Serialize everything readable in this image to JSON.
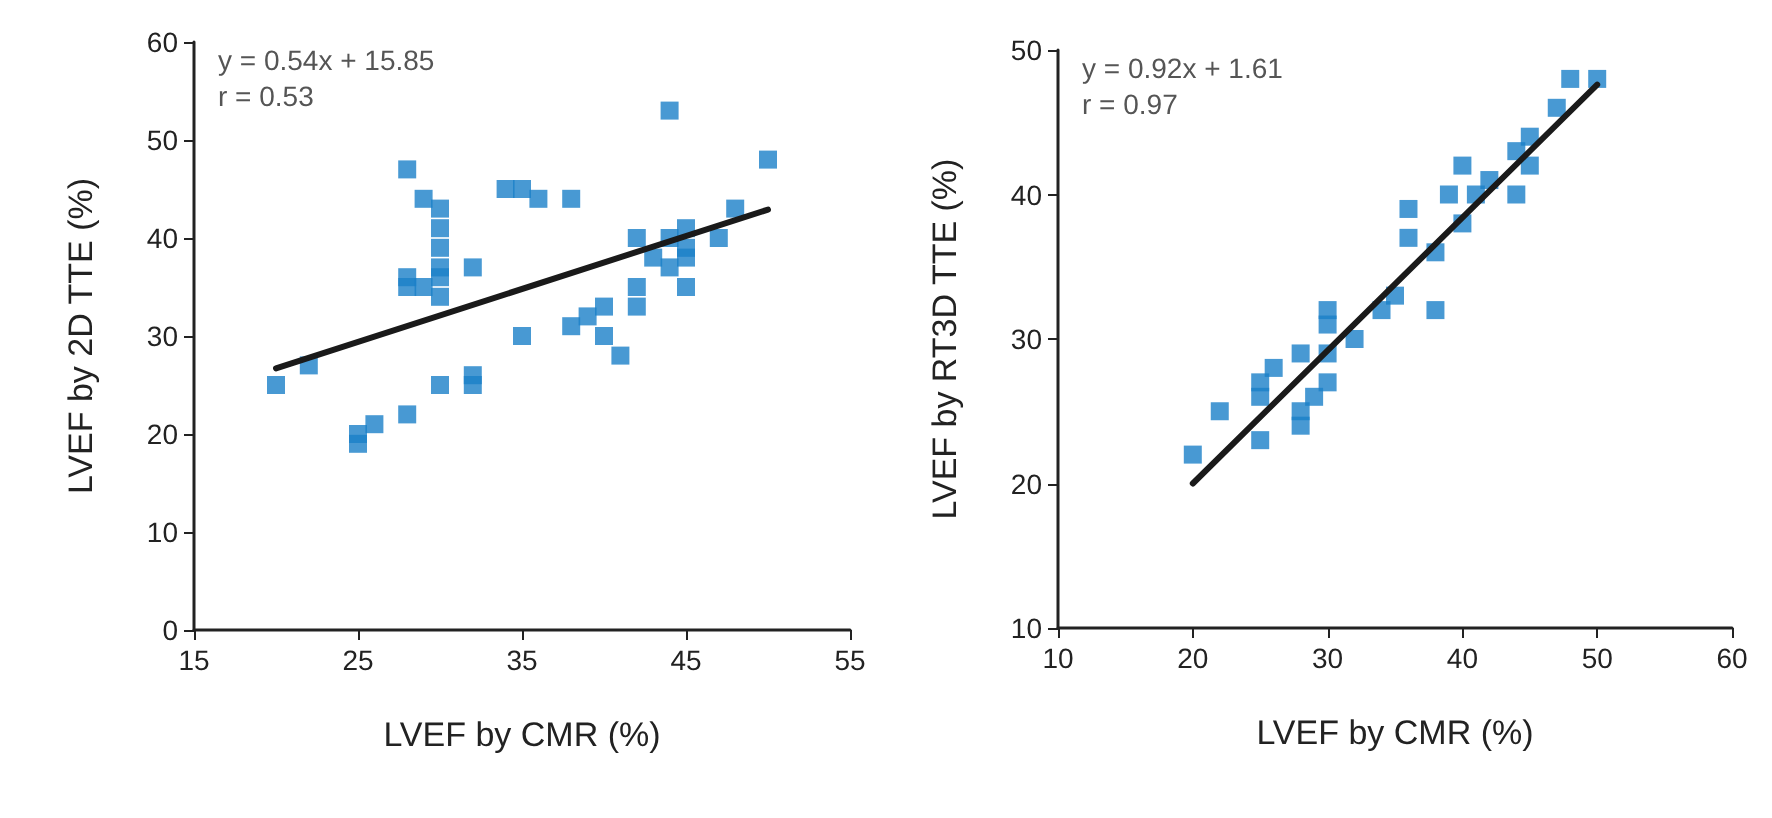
{
  "chart_data": [
    {
      "type": "scatter",
      "xlabel": "LVEF by CMR (%)",
      "ylabel": "LVEF by 2D TTE (%)",
      "annotations": [
        "y = 0.54x + 15.85",
        "r = 0.53"
      ],
      "xlim": [
        15,
        55
      ],
      "xticks": [
        15,
        25,
        35,
        45,
        55
      ],
      "ylim": [
        0,
        60
      ],
      "yticks": [
        0,
        10,
        20,
        30,
        40,
        50,
        60
      ],
      "marker": "square",
      "series": [
        {
          "color": "#1a7fc8",
          "x": [
            20,
            22,
            25,
            25,
            26,
            28,
            28,
            28,
            28,
            29,
            29,
            30,
            30,
            30,
            30,
            30,
            30,
            30,
            32,
            32,
            32,
            34,
            35,
            36,
            35,
            38,
            38,
            39,
            40,
            40,
            41,
            42,
            42,
            42,
            43,
            44,
            44,
            44,
            45,
            45,
            45,
            45,
            47,
            48,
            50
          ],
          "values": [
            25,
            27,
            19,
            20,
            21,
            22,
            47,
            35,
            36,
            44,
            35,
            43,
            41,
            39,
            36,
            34,
            37,
            25,
            37,
            25,
            26,
            45,
            45,
            44,
            30,
            44,
            31,
            32,
            33,
            30,
            28,
            33,
            35,
            40,
            38,
            53,
            40,
            37,
            41,
            38,
            35,
            39,
            40,
            43,
            48
          ]
        },
        {
          "type": "line",
          "color": "#1a1a1a",
          "marker": "none",
          "line_style": "solid",
          "x": [
            20,
            50
          ],
          "values": [
            26.7,
            42.9
          ]
        }
      ]
    },
    {
      "type": "scatter",
      "xlabel": "LVEF by CMR (%)",
      "ylabel": "LVEF by RT3D TTE (%)",
      "annotations": [
        "y = 0.92x + 1.61",
        "r = 0.97"
      ],
      "xlim": [
        10,
        60
      ],
      "xticks": [
        10,
        20,
        30,
        40,
        50,
        60
      ],
      "ylim": [
        10,
        50
      ],
      "yticks": [
        10,
        20,
        30,
        40,
        50
      ],
      "marker": "square",
      "series": [
        {
          "color": "#1a7fc8",
          "x": [
            20,
            22,
            25,
            25,
            25,
            26,
            28,
            28,
            28,
            29,
            30,
            30,
            30,
            30,
            32,
            34,
            35,
            36,
            36,
            38,
            38,
            39,
            40,
            40,
            41,
            42,
            44,
            44,
            45,
            45,
            47,
            48,
            50
          ],
          "values": [
            22,
            25,
            23,
            26,
            27,
            28,
            29,
            25,
            24,
            26,
            27,
            29,
            32,
            31,
            30,
            32,
            33,
            37,
            39,
            36,
            32,
            40,
            38,
            42,
            40,
            41,
            40,
            43,
            42,
            44,
            46,
            48,
            48
          ]
        },
        {
          "type": "line",
          "color": "#1a1a1a",
          "marker": "none",
          "line_style": "solid",
          "x": [
            20,
            50
          ],
          "values": [
            20.0,
            47.6
          ]
        }
      ]
    }
  ]
}
